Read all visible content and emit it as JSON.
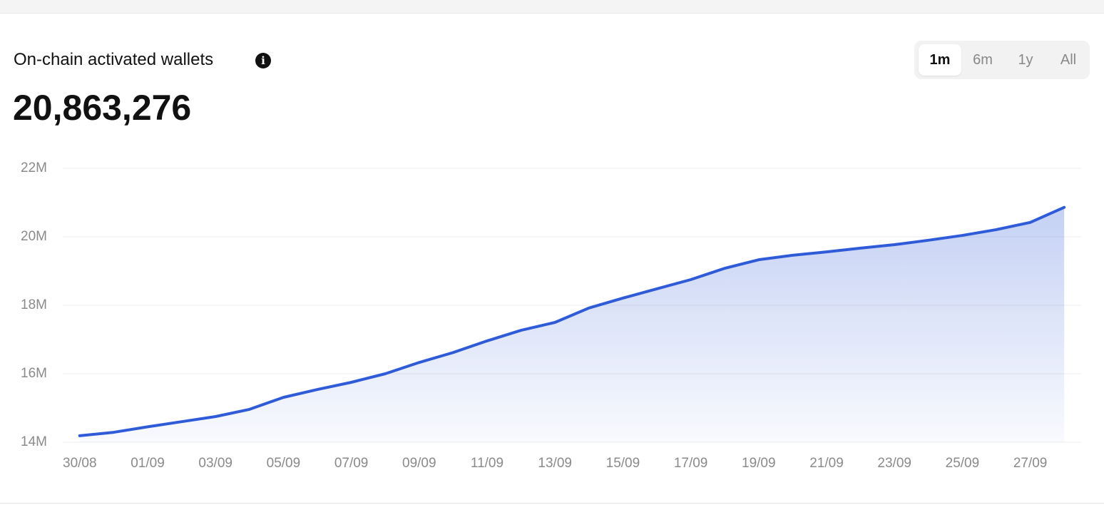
{
  "header": {
    "title": "On-chain activated wallets",
    "value": "20,863,276"
  },
  "range_buttons": {
    "options": [
      "1m",
      "6m",
      "1y",
      "All"
    ],
    "selected": 0
  },
  "chart_data": {
    "type": "area",
    "categories": [
      "30/08",
      null,
      "01/09",
      null,
      "03/09",
      null,
      "05/09",
      null,
      "07/09",
      null,
      "09/09",
      null,
      "11/09",
      null,
      "13/09",
      null,
      "15/09",
      null,
      "17/09",
      null,
      "19/09",
      null,
      "21/09",
      null,
      "23/09",
      null,
      "25/09",
      null,
      "27/09",
      null
    ],
    "series": [
      {
        "name": "On-chain activated wallets",
        "color": "#2f5bd8",
        "values": [
          14.19,
          14.29,
          14.45,
          14.6,
          14.75,
          14.96,
          15.31,
          15.54,
          15.75,
          16.0,
          16.33,
          16.62,
          16.96,
          17.27,
          17.5,
          17.92,
          18.21,
          18.48,
          18.75,
          19.08,
          19.33,
          19.46,
          19.56,
          19.67,
          19.77,
          19.9,
          20.04,
          20.21,
          20.42,
          20.86
        ]
      }
    ],
    "ylim": [
      14,
      22
    ],
    "yticks": [
      {
        "value": 14,
        "label": "14M"
      },
      {
        "value": 16,
        "label": "16M"
      },
      {
        "value": 18,
        "label": "18M"
      },
      {
        "value": 20,
        "label": "20M"
      },
      {
        "value": 22,
        "label": "22M"
      }
    ],
    "grid": true
  }
}
